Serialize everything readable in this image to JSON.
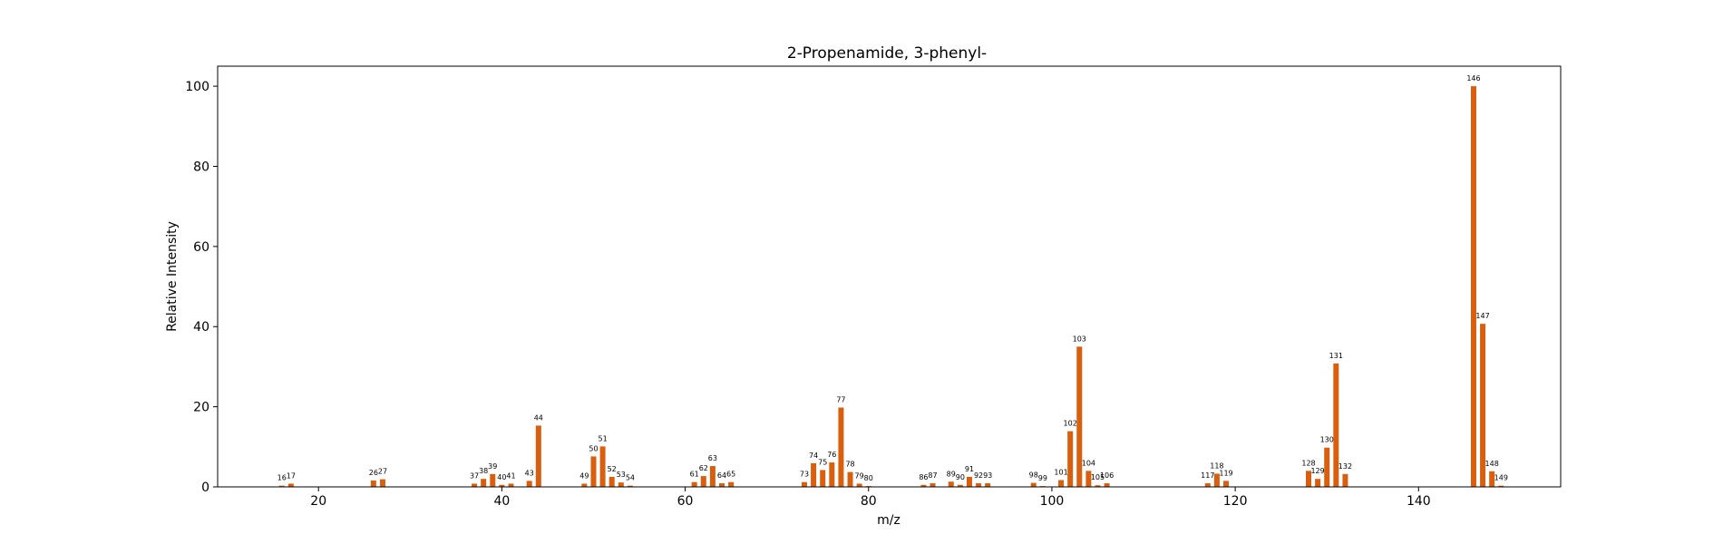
{
  "chart_data": {
    "type": "bar",
    "title": "2-Propenamide, 3-phenyl-",
    "xlabel": "m/z",
    "ylabel": "Relative Intensity",
    "xlim": [
      9,
      155.5
    ],
    "ylim": [
      0,
      105
    ],
    "xticks": [
      20,
      40,
      60,
      80,
      100,
      120,
      140
    ],
    "yticks": [
      0,
      20,
      40,
      60,
      80,
      100
    ],
    "grid": false,
    "bar_color": "#d95f0e",
    "x": [
      16,
      17,
      26,
      27,
      37,
      38,
      39,
      40,
      41,
      43,
      44,
      49,
      50,
      51,
      52,
      53,
      54,
      61,
      62,
      63,
      64,
      65,
      73,
      74,
      75,
      76,
      77,
      78,
      79,
      80,
      86,
      87,
      89,
      90,
      91,
      92,
      93,
      98,
      99,
      101,
      102,
      103,
      104,
      105,
      106,
      117,
      118,
      119,
      128,
      129,
      130,
      131,
      132,
      146,
      147,
      148,
      149
    ],
    "values": [
      0.3,
      0.8,
      1.6,
      1.9,
      0.8,
      2.0,
      3.2,
      0.5,
      0.8,
      1.5,
      15.3,
      0.8,
      7.6,
      10.1,
      2.5,
      1.1,
      0.3,
      1.2,
      2.7,
      5.2,
      0.9,
      1.2,
      1.2,
      5.9,
      4.2,
      6.1,
      19.8,
      3.7,
      0.8,
      0.2,
      0.5,
      0.9,
      1.3,
      0.5,
      2.5,
      0.9,
      0.9,
      1.0,
      0.2,
      1.7,
      13.9,
      35.0,
      4.0,
      0.4,
      0.9,
      0.9,
      3.3,
      1.5,
      4.0,
      2.0,
      9.8,
      30.8,
      3.2,
      100.0,
      40.7,
      3.9,
      0.3
    ],
    "labels": [
      "16",
      "17",
      "26",
      "27",
      "37",
      "38",
      "39",
      "40",
      "41",
      "43",
      "44",
      "49",
      "50",
      "51",
      "52",
      "53",
      "54",
      "61",
      "62",
      "63",
      "64",
      "65",
      "73",
      "74",
      "75",
      "76",
      "77",
      "78",
      "79",
      "80",
      "86",
      "87",
      "89",
      "90",
      "91",
      "92",
      "93",
      "98",
      "99",
      "101",
      "102",
      "103",
      "104",
      "105",
      "106",
      "117",
      "118",
      "119",
      "128",
      "129",
      "130",
      "131",
      "132",
      "146",
      "147",
      "148",
      "149"
    ]
  }
}
